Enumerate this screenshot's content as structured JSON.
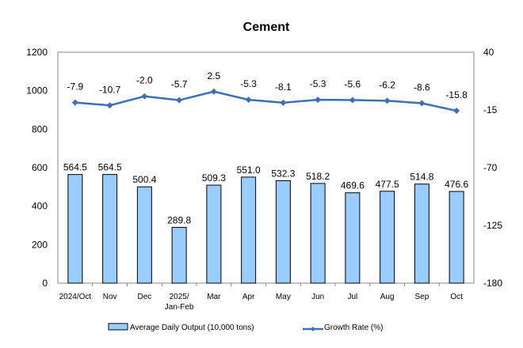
{
  "chart_data": {
    "type": "bar+line",
    "title": "Cement",
    "categories": [
      "2024/Oct",
      "Nov",
      "Dec",
      "2025/\nJan-Feb",
      "Mar",
      "Apr",
      "May",
      "Jun",
      "Jul",
      "Aug",
      "Sep",
      "Oct"
    ],
    "series": [
      {
        "name": "Average Daily Output (10,000 tons)",
        "type": "bar",
        "axis": "left",
        "values": [
          564.5,
          564.5,
          500.4,
          289.8,
          509.3,
          551.0,
          532.3,
          518.2,
          469.6,
          477.5,
          514.8,
          476.6
        ],
        "labels": [
          "564.5",
          "564.5",
          "500.4",
          "289.8",
          "509.3",
          "551.0",
          "532.3",
          "518.2",
          "469.6",
          "477.5",
          "514.8",
          "476.6"
        ],
        "color": "#99CCFF"
      },
      {
        "name": "Growth Rate (%)",
        "type": "line",
        "axis": "right",
        "values": [
          -7.9,
          -10.7,
          -2.0,
          -5.7,
          2.5,
          -5.3,
          -8.1,
          -5.3,
          -5.6,
          -6.2,
          -8.6,
          -15.8
        ],
        "labels": [
          "-7.9",
          "-10.7",
          "-2.0",
          "-5.7",
          "2.5",
          "-5.3",
          "-8.1",
          "-5.3",
          "-5.6",
          "-6.2",
          "-8.6",
          "-15.8"
        ],
        "color": "#3A70B8"
      }
    ],
    "left_axis": {
      "ylim": [
        0,
        1200
      ],
      "ticks": [
        "0",
        "200",
        "400",
        "600",
        "800",
        "1000",
        "1200"
      ]
    },
    "right_axis": {
      "ylim": [
        -180,
        40
      ],
      "ticks": [
        "-180",
        "-125",
        "-70",
        "-15",
        "40"
      ]
    },
    "legend_position": "bottom",
    "grid": false
  }
}
